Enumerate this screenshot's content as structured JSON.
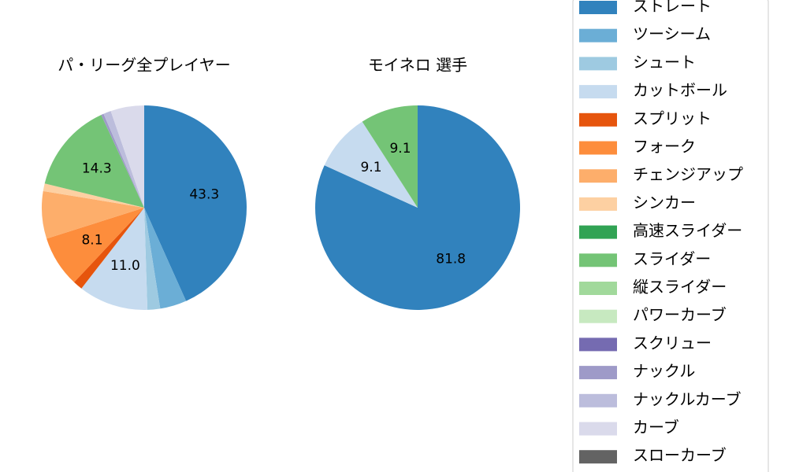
{
  "chart_data": [
    {
      "type": "pie",
      "title": "パ・リーグ全プレイヤー",
      "categories": [
        "ストレート",
        "ツーシーム",
        "シュート",
        "カットボール",
        "スプリット",
        "フォーク",
        "チェンジアップ",
        "シンカー",
        "高速スライダー",
        "スライダー",
        "縦スライダー",
        "パワーカーブ",
        "スクリュー",
        "ナックル",
        "ナックルカーブ",
        "カーブ",
        "スローカーブ"
      ],
      "colors": [
        "#3182bd",
        "#6baed6",
        "#9ecae1",
        "#c6dbef",
        "#e6550d",
        "#fd8d3c",
        "#fdae6b",
        "#fdd0a2",
        "#31a354",
        "#74c476",
        "#a1d99b",
        "#c7e9c0",
        "#756bb1",
        "#9e9ac8",
        "#bcbddc",
        "#dadaeb",
        "#636363"
      ],
      "values": [
        43.3,
        4.2,
        2.0,
        11.0,
        1.5,
        8.1,
        7.5,
        1.2,
        0,
        14.3,
        0,
        0,
        0,
        0.4,
        1.2,
        5.3,
        0
      ],
      "value_labels": [
        "43.3",
        null,
        null,
        "11.0",
        null,
        "8.1",
        null,
        null,
        null,
        "14.3",
        null,
        null,
        null,
        null,
        null,
        null,
        null
      ]
    },
    {
      "type": "pie",
      "title": "モイネロ  選手",
      "values": [
        81.8,
        0,
        0,
        9.1,
        0,
        0,
        0,
        0,
        0,
        9.1,
        0,
        0,
        0,
        0,
        0,
        0,
        0
      ],
      "value_labels": [
        "81.8",
        null,
        null,
        "9.1",
        null,
        null,
        null,
        null,
        null,
        "9.1",
        null,
        null,
        null,
        null,
        null,
        null,
        null
      ]
    }
  ]
}
